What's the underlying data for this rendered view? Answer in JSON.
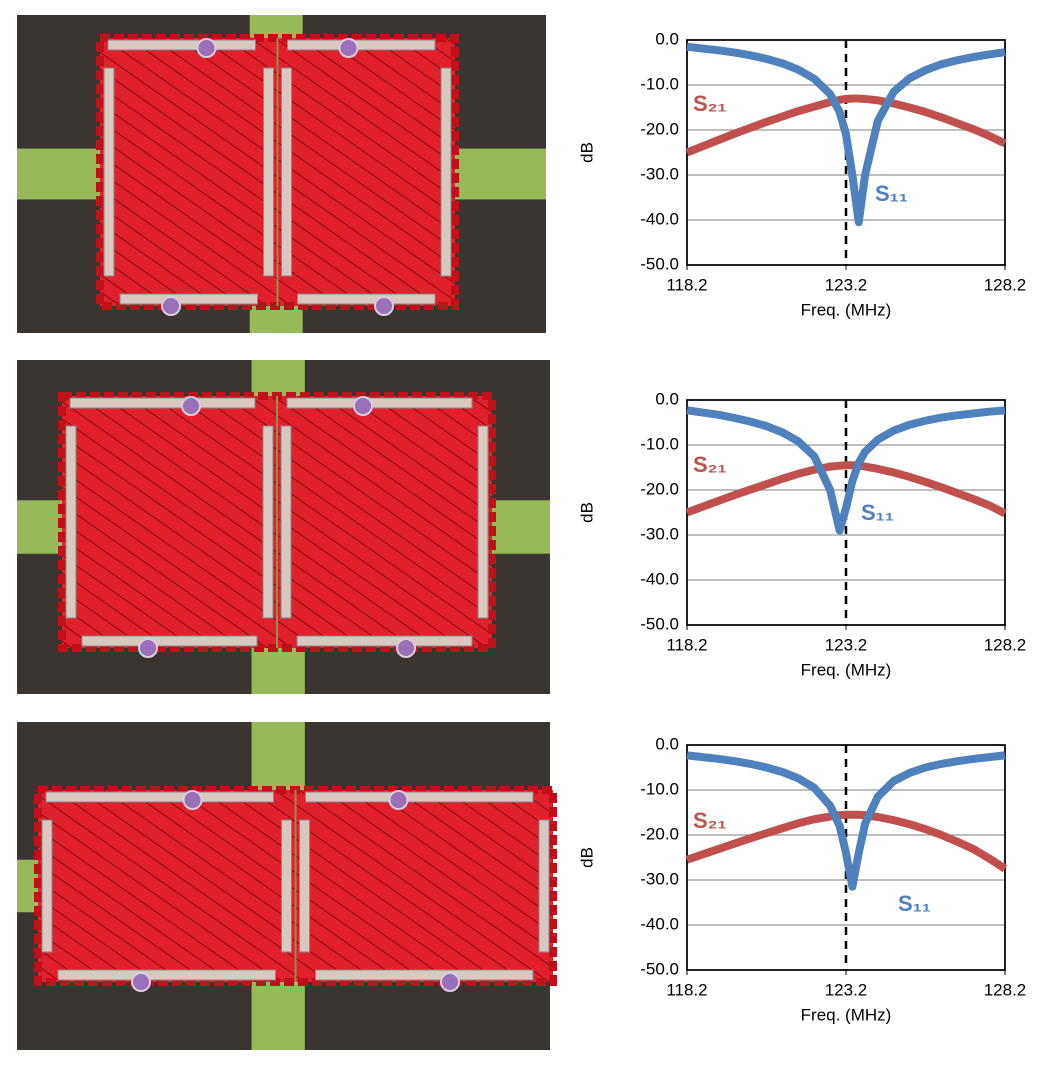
{
  "chart_data": [
    {
      "type": "line",
      "x_label": "Freq. (MHz)",
      "y_label": "dB",
      "x": [
        118.2,
        118.7,
        119.2,
        119.7,
        120.2,
        120.7,
        121.2,
        121.7,
        122.2,
        122.7,
        123.0,
        123.2,
        123.4,
        123.6,
        123.8,
        124.2,
        124.7,
        125.2,
        125.7,
        126.2,
        126.7,
        127.2,
        127.7,
        128.2
      ],
      "series": [
        {
          "name": "S₂₁",
          "color": "#c0504d",
          "values": [
            -25,
            -23.6,
            -22.2,
            -20.8,
            -19.5,
            -18.2,
            -17,
            -15.8,
            -14.8,
            -13.8,
            -13.3,
            -13.1,
            -13,
            -13,
            -13.1,
            -13.4,
            -14.1,
            -15,
            -16,
            -17.2,
            -18.5,
            -19.8,
            -21.3,
            -23
          ]
        },
        {
          "name": "S₁₁",
          "color": "#4f81bd",
          "values": [
            -1.5,
            -1.9,
            -2.3,
            -2.8,
            -3.4,
            -4.2,
            -5.2,
            -6.6,
            -8.6,
            -12,
            -16,
            -21,
            -30,
            -40.5,
            -30,
            -18,
            -11.5,
            -8.5,
            -6.7,
            -5.4,
            -4.5,
            -3.8,
            -3.2,
            -2.7
          ]
        }
      ],
      "xlim": [
        118.2,
        128.2
      ],
      "xticks": [
        118.2,
        123.2,
        128.2
      ],
      "ylim": [
        -50,
        0
      ],
      "yticks": [
        {
          "value": -50,
          "label": "-50.0"
        },
        {
          "value": -40,
          "label": "-40.0"
        },
        {
          "value": -30,
          "label": "-30.0"
        },
        {
          "value": -20,
          "label": "-20.0"
        },
        {
          "value": -10,
          "label": "-10.0"
        },
        {
          "value": 0,
          "label": "0.0"
        }
      ],
      "grid": true,
      "vline": 123.2
    },
    {
      "type": "line",
      "x_label": "Freq. (MHz)",
      "y_label": "dB",
      "x": [
        118.2,
        118.7,
        119.2,
        119.7,
        120.2,
        120.7,
        121.2,
        121.7,
        122.2,
        122.7,
        123.0,
        123.2,
        123.4,
        123.6,
        123.8,
        124.2,
        124.7,
        125.2,
        125.7,
        126.2,
        126.7,
        127.2,
        127.7,
        128.2
      ],
      "series": [
        {
          "name": "S₂₁",
          "color": "#c0504d",
          "values": [
            -25,
            -23.7,
            -22.4,
            -21.1,
            -19.9,
            -18.7,
            -17.5,
            -16.4,
            -15.5,
            -14.8,
            -14.6,
            -14.5,
            -14.5,
            -14.6,
            -14.8,
            -15.3,
            -16.1,
            -17.1,
            -18.2,
            -19.4,
            -20.7,
            -22,
            -23.4,
            -25.2
          ]
        },
        {
          "name": "S₁₁",
          "color": "#4f81bd",
          "values": [
            -2.3,
            -2.8,
            -3.3,
            -4,
            -4.8,
            -5.8,
            -7.2,
            -9.2,
            -12.5,
            -20,
            -29,
            -24,
            -18,
            -14,
            -11.5,
            -8.8,
            -6.8,
            -5.5,
            -4.6,
            -3.9,
            -3.4,
            -3,
            -2.6,
            -2.3
          ]
        }
      ],
      "xlim": [
        118.2,
        128.2
      ],
      "xticks": [
        118.2,
        123.2,
        128.2
      ],
      "ylim": [
        -50,
        0
      ],
      "yticks": [
        {
          "value": -50,
          "label": "-50.0"
        },
        {
          "value": -40,
          "label": "-40.0"
        },
        {
          "value": -30,
          "label": "-30.0"
        },
        {
          "value": -20,
          "label": "-20.0"
        },
        {
          "value": -10,
          "label": "-10.0"
        },
        {
          "value": 0,
          "label": "0.0"
        }
      ],
      "grid": true,
      "vline": 123.2
    },
    {
      "type": "line",
      "x_label": "Freq. (MHz)",
      "y_label": "dB",
      "x": [
        118.2,
        118.7,
        119.2,
        119.7,
        120.2,
        120.7,
        121.2,
        121.7,
        122.2,
        122.7,
        123.0,
        123.2,
        123.4,
        123.6,
        123.8,
        124.2,
        124.7,
        125.2,
        125.7,
        126.2,
        126.7,
        127.2,
        127.7,
        128.2
      ],
      "series": [
        {
          "name": "S₂₁",
          "color": "#c0504d",
          "values": [
            -25.5,
            -24.3,
            -23.1,
            -21.9,
            -20.7,
            -19.6,
            -18.5,
            -17.4,
            -16.5,
            -15.9,
            -15.6,
            -15.5,
            -15.5,
            -15.5,
            -15.6,
            -16,
            -16.7,
            -17.6,
            -18.7,
            -20,
            -21.5,
            -23.1,
            -25.2,
            -27.5
          ]
        },
        {
          "name": "S₁₁",
          "color": "#4f81bd",
          "values": [
            -2.3,
            -2.7,
            -3.1,
            -3.6,
            -4.2,
            -5,
            -6,
            -7.4,
            -9.5,
            -13.5,
            -18,
            -24,
            -31.5,
            -24,
            -17.5,
            -11.5,
            -8,
            -6.2,
            -5,
            -4.2,
            -3.6,
            -3.1,
            -2.7,
            -2.3
          ]
        }
      ],
      "xlim": [
        118.2,
        128.2
      ],
      "xticks": [
        118.2,
        123.2,
        128.2
      ],
      "ylim": [
        -50,
        0
      ],
      "yticks": [
        {
          "value": -50,
          "label": "-50.0"
        },
        {
          "value": -40,
          "label": "-40.0"
        },
        {
          "value": -30,
          "label": "-30.0"
        },
        {
          "value": -20,
          "label": "-20.0"
        },
        {
          "value": -10,
          "label": "-10.0"
        },
        {
          "value": 0,
          "label": "0.0"
        }
      ],
      "grid": true,
      "vline": 123.2
    }
  ]
}
